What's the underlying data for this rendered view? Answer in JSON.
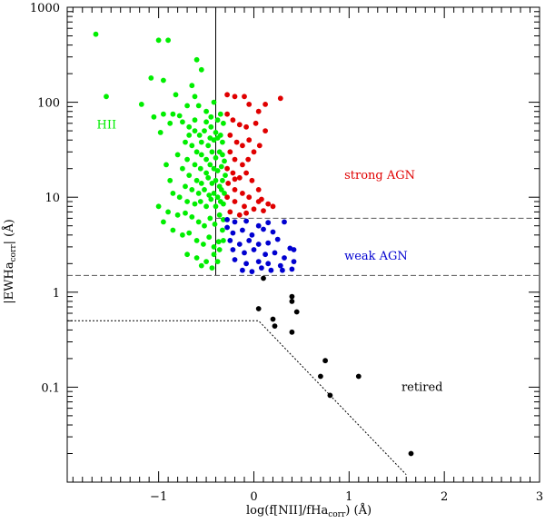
{
  "chart_data": {
    "type": "scatter",
    "title": "",
    "xlabel_main": "log(f[NII]/fHa",
    "xlabel_sub": "corr",
    "xlabel_tail": ") (Å)",
    "ylabel_main": "|EWHa",
    "ylabel_sub": "corr",
    "ylabel_tail": "| (Å)",
    "xlim": [
      -1.96,
      3.0
    ],
    "ylim_log": [
      0.01,
      1000
    ],
    "x_ticks": [
      -1,
      0,
      1,
      2,
      3
    ],
    "x_tick_labels": [
      "−1",
      "0",
      "1",
      "2",
      "3"
    ],
    "y_ticks": [
      0.1,
      1,
      10,
      100,
      1000
    ],
    "y_tick_labels": [
      "0.1",
      "1",
      "10",
      "100",
      "1000"
    ],
    "regions": [
      {
        "name": "HII",
        "color": "#00ee00",
        "x": -1.65,
        "y": 58
      },
      {
        "name": "strong AGN",
        "color": "#e00000",
        "x": 0.95,
        "y": 17
      },
      {
        "name": "weak AGN",
        "color": "#0000d0",
        "x": 0.95,
        "y": 2.4
      },
      {
        "name": "retired",
        "color": "#000000",
        "x": 1.55,
        "y": 0.1
      }
    ],
    "boundaries": [
      {
        "name": "nii-vertical",
        "style": "solid",
        "points": [
          [
            -0.4,
            1.5
          ],
          [
            -0.4,
            1000
          ]
        ]
      },
      {
        "name": "ew-6-line",
        "style": "dashed",
        "points": [
          [
            -0.4,
            6
          ],
          [
            3.0,
            6
          ]
        ]
      },
      {
        "name": "ew-1.5-line",
        "style": "dashed",
        "points": [
          [
            -1.96,
            1.5
          ],
          [
            3.0,
            1.5
          ]
        ]
      },
      {
        "name": "retired-line",
        "style": "dotted",
        "points": [
          [
            -1.96,
            0.5
          ],
          [
            0.05,
            0.5
          ],
          [
            1.6,
            0.012
          ]
        ]
      }
    ],
    "series": [
      {
        "name": "HII",
        "color": "#00ee00",
        "points": [
          [
            -1.66,
            520
          ],
          [
            -1.55,
            115
          ],
          [
            -1.0,
            450
          ],
          [
            -0.9,
            450
          ],
          [
            -0.6,
            280
          ],
          [
            -1.08,
            180
          ],
          [
            -0.95,
            170
          ],
          [
            -1.18,
            95
          ],
          [
            -0.82,
            120
          ],
          [
            -0.95,
            75
          ],
          [
            -1.05,
            70
          ],
          [
            -0.55,
            220
          ],
          [
            -0.65,
            150
          ],
          [
            -0.42,
            100
          ],
          [
            -0.62,
            115
          ],
          [
            -0.5,
            80
          ],
          [
            -0.7,
            92
          ],
          [
            -0.58,
            92
          ],
          [
            -0.85,
            75
          ],
          [
            -0.78,
            72
          ],
          [
            -0.75,
            62
          ],
          [
            -0.68,
            55
          ],
          [
            -0.62,
            50
          ],
          [
            -0.57,
            45
          ],
          [
            -0.5,
            62
          ],
          [
            -0.45,
            55
          ],
          [
            -0.4,
            48
          ],
          [
            -0.35,
            45
          ],
          [
            -0.55,
            38
          ],
          [
            -0.48,
            35
          ],
          [
            -0.42,
            40
          ],
          [
            -0.38,
            42
          ],
          [
            -0.33,
            38
          ],
          [
            -0.6,
            30
          ],
          [
            -0.55,
            28
          ],
          [
            -0.5,
            25
          ],
          [
            -0.44,
            30
          ],
          [
            -0.4,
            26
          ],
          [
            -0.36,
            30
          ],
          [
            -0.33,
            28
          ],
          [
            -0.65,
            35
          ],
          [
            -0.7,
            25
          ],
          [
            -0.62,
            22
          ],
          [
            -0.56,
            20
          ],
          [
            -0.5,
            18
          ],
          [
            -0.46,
            22
          ],
          [
            -0.42,
            20
          ],
          [
            -0.38,
            19
          ],
          [
            -0.34,
            21
          ],
          [
            -0.31,
            24
          ],
          [
            -0.8,
            28
          ],
          [
            -0.75,
            20
          ],
          [
            -0.68,
            17
          ],
          [
            -0.6,
            15
          ],
          [
            -0.55,
            14
          ],
          [
            -0.48,
            16
          ],
          [
            -0.44,
            14
          ],
          [
            -0.4,
            15
          ],
          [
            -0.36,
            13
          ],
          [
            -0.33,
            15
          ],
          [
            -0.3,
            17
          ],
          [
            -0.72,
            13
          ],
          [
            -0.65,
            12
          ],
          [
            -0.58,
            11
          ],
          [
            -0.52,
            12
          ],
          [
            -0.47,
            10.5
          ],
          [
            -0.42,
            11
          ],
          [
            -0.38,
            10
          ],
          [
            -0.34,
            12
          ],
          [
            -0.31,
            11
          ],
          [
            -0.85,
            11
          ],
          [
            -0.78,
            10
          ],
          [
            -0.7,
            9
          ],
          [
            -0.62,
            8.5
          ],
          [
            -0.56,
            9
          ],
          [
            -0.5,
            8
          ],
          [
            -0.45,
            9.5
          ],
          [
            -0.4,
            8
          ],
          [
            -0.35,
            9
          ],
          [
            -0.32,
            8.5
          ],
          [
            -0.9,
            7
          ],
          [
            -0.8,
            6.5
          ],
          [
            -0.72,
            6.8
          ],
          [
            -0.65,
            6.2
          ],
          [
            -0.58,
            5.5
          ],
          [
            -0.52,
            5
          ],
          [
            -0.46,
            6
          ],
          [
            -0.41,
            5.2
          ],
          [
            -0.36,
            6.5
          ],
          [
            -0.32,
            5.8
          ],
          [
            -0.85,
            4.5
          ],
          [
            -0.75,
            4
          ],
          [
            -0.68,
            4.2
          ],
          [
            -0.6,
            3.5
          ],
          [
            -0.53,
            3.2
          ],
          [
            -0.47,
            3.8
          ],
          [
            -0.42,
            3
          ],
          [
            -0.37,
            3.4
          ],
          [
            -0.33,
            4.5
          ],
          [
            -0.7,
            2.5
          ],
          [
            -0.6,
            2.3
          ],
          [
            -0.5,
            2.1
          ],
          [
            -0.42,
            2.5
          ],
          [
            -0.36,
            2.8
          ],
          [
            -0.32,
            3.5
          ],
          [
            -0.55,
            1.9
          ],
          [
            -0.44,
            1.8
          ],
          [
            -0.38,
            2.1
          ],
          [
            -0.95,
            5.5
          ],
          [
            -1.0,
            8
          ],
          [
            -0.88,
            15
          ],
          [
            -0.92,
            22
          ],
          [
            -0.72,
            38
          ],
          [
            -0.62,
            65
          ],
          [
            -0.45,
            70
          ],
          [
            -0.38,
            65
          ],
          [
            -0.35,
            75
          ],
          [
            -0.32,
            60
          ],
          [
            -0.68,
            45
          ],
          [
            -0.52,
            50
          ],
          [
            -0.46,
            42
          ],
          [
            -0.88,
            60
          ],
          [
            -0.98,
            48
          ]
        ]
      },
      {
        "name": "strong AGN",
        "color": "#e00000",
        "points": [
          [
            -0.28,
            120
          ],
          [
            -0.2,
            115
          ],
          [
            -0.1,
            115
          ],
          [
            -0.05,
            95
          ],
          [
            0.05,
            80
          ],
          [
            0.12,
            95
          ],
          [
            0.28,
            110
          ],
          [
            -0.28,
            75
          ],
          [
            -0.22,
            65
          ],
          [
            -0.15,
            58
          ],
          [
            -0.08,
            55
          ],
          [
            0.02,
            60
          ],
          [
            0.12,
            50
          ],
          [
            -0.25,
            45
          ],
          [
            -0.18,
            38
          ],
          [
            -0.12,
            35
          ],
          [
            -0.05,
            40
          ],
          [
            0.06,
            35
          ],
          [
            -0.25,
            30
          ],
          [
            -0.2,
            25
          ],
          [
            -0.12,
            22
          ],
          [
            -0.06,
            25
          ],
          [
            -0.28,
            20
          ],
          [
            -0.22,
            18
          ],
          [
            -0.15,
            16
          ],
          [
            -0.08,
            18
          ],
          [
            -0.02,
            15
          ],
          [
            0.05,
            12
          ],
          [
            -0.27,
            14
          ],
          [
            -0.2,
            12
          ],
          [
            -0.12,
            11
          ],
          [
            -0.05,
            10
          ],
          [
            0.08,
            9.5
          ],
          [
            0.15,
            8.5
          ],
          [
            -0.28,
            10
          ],
          [
            -0.2,
            9
          ],
          [
            -0.1,
            8
          ],
          [
            0.0,
            7.5
          ],
          [
            0.05,
            9
          ],
          [
            0.2,
            8
          ],
          [
            -0.25,
            7
          ],
          [
            -0.15,
            6.5
          ],
          [
            -0.08,
            6.8
          ],
          [
            0.1,
            7.2
          ],
          [
            -0.2,
            15.5
          ],
          [
            0.0,
            30
          ]
        ]
      },
      {
        "name": "weak AGN",
        "color": "#0000d0",
        "points": [
          [
            -0.28,
            5.8
          ],
          [
            -0.2,
            5.5
          ],
          [
            -0.08,
            5.6
          ],
          [
            0.05,
            5
          ],
          [
            0.15,
            5.4
          ],
          [
            0.32,
            5.5
          ],
          [
            -0.28,
            4.8
          ],
          [
            -0.22,
            4.2
          ],
          [
            -0.12,
            4.5
          ],
          [
            -0.02,
            4
          ],
          [
            0.1,
            4.6
          ],
          [
            0.2,
            4.3
          ],
          [
            -0.25,
            3.5
          ],
          [
            -0.15,
            3.2
          ],
          [
            -0.05,
            3.5
          ],
          [
            0.05,
            3.2
          ],
          [
            0.15,
            3.3
          ],
          [
            0.25,
            3.6
          ],
          [
            0.38,
            2.9
          ],
          [
            -0.22,
            2.8
          ],
          [
            -0.1,
            2.6
          ],
          [
            0.0,
            2.8
          ],
          [
            0.12,
            2.5
          ],
          [
            0.22,
            2.6
          ],
          [
            0.32,
            2.3
          ],
          [
            0.42,
            2.8
          ],
          [
            -0.2,
            2.2
          ],
          [
            -0.08,
            2.0
          ],
          [
            0.05,
            2.1
          ],
          [
            0.15,
            2.0
          ],
          [
            0.28,
            1.9
          ],
          [
            0.42,
            2.1
          ],
          [
            -0.12,
            1.7
          ],
          [
            -0.02,
            1.65
          ],
          [
            0.08,
            1.8
          ],
          [
            0.18,
            1.7
          ],
          [
            0.3,
            1.7
          ],
          [
            0.4,
            1.75
          ]
        ]
      },
      {
        "name": "retired",
        "color": "#000000",
        "points": [
          [
            0.1,
            1.4
          ],
          [
            0.4,
            0.9
          ],
          [
            0.4,
            0.8
          ],
          [
            0.05,
            0.67
          ],
          [
            0.45,
            0.62
          ],
          [
            0.2,
            0.52
          ],
          [
            0.22,
            0.44
          ],
          [
            0.4,
            0.38
          ],
          [
            0.75,
            0.19
          ],
          [
            0.7,
            0.13
          ],
          [
            1.1,
            0.13
          ],
          [
            0.8,
            0.082
          ],
          [
            1.65,
            0.02
          ]
        ]
      }
    ]
  }
}
